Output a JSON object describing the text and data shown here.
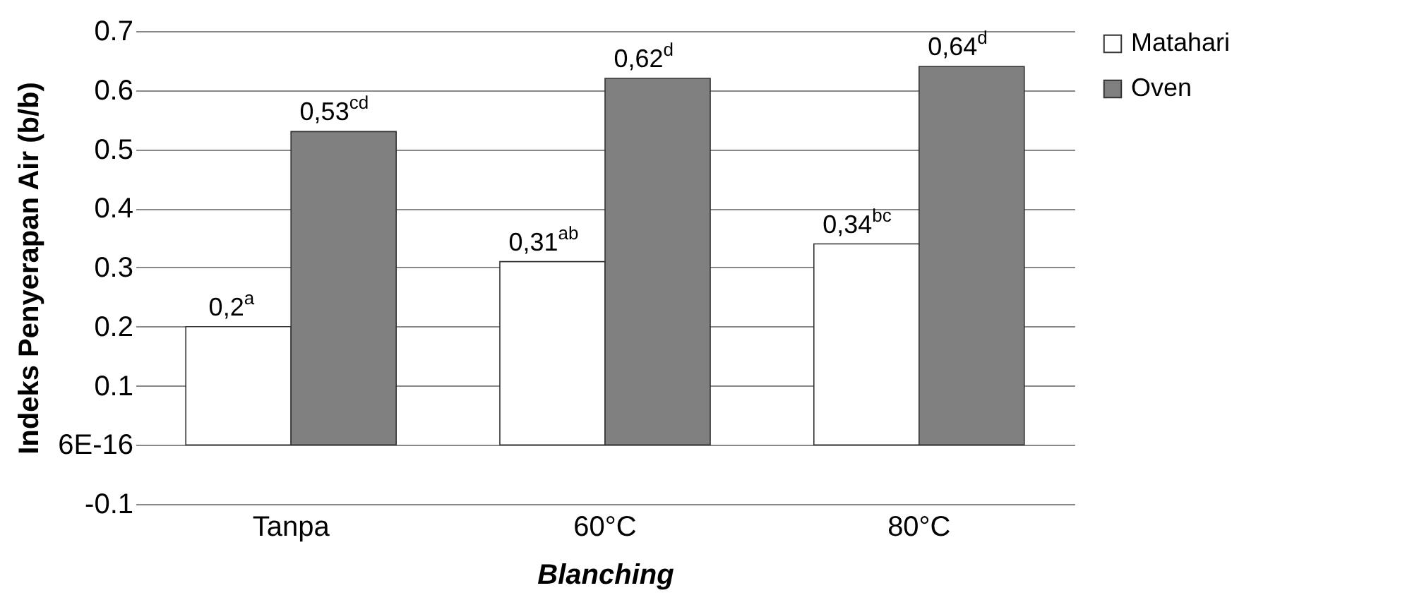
{
  "chart_data": {
    "type": "bar",
    "xlabel": "Blanching",
    "ylabel": "Indeks Penyerapan Air (b/b)",
    "categories": [
      "Tanpa",
      "60°C",
      "80°C"
    ],
    "series": [
      {
        "name": "Matahari",
        "color": "#ffffff",
        "values": [
          0.2,
          0.31,
          0.34
        ],
        "value_labels": [
          "0,2$^{a}$",
          "0,31$^{ab}$",
          "0,34$^{bc}$"
        ]
      },
      {
        "name": "Oven",
        "color": "#808080",
        "values": [
          0.53,
          0.62,
          0.64
        ],
        "value_labels": [
          "0,53$^{cd}$",
          "0,62$^{d}$",
          "0,64$^{d}$"
        ]
      }
    ],
    "ylim": [
      -0.1,
      0.7
    ],
    "yticks": [
      -0.1,
      {
        "value": 0,
        "label": "6E-16"
      },
      0.1,
      0.2,
      0.3,
      0.4,
      0.5,
      0.6,
      0.7
    ],
    "grid": "y",
    "legend": "right"
  }
}
